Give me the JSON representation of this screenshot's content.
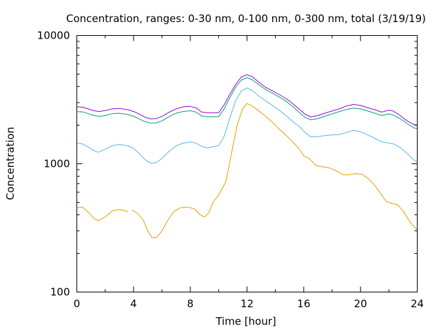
{
  "chart_data": {
    "type": "line",
    "title": "Concentration, ranges: 0-30 nm, 0-100 nm, 0-300 nm, total (3/19/19)",
    "xlabel": "Time [hour]",
    "ylabel": "Concentration",
    "xlim": [
      0,
      24
    ],
    "ylim": [
      100,
      10000
    ],
    "yscale": "log",
    "grid": false,
    "legend": "none",
    "x_ticks": [
      0,
      4,
      8,
      12,
      16,
      20,
      24
    ],
    "x_tick_labels": [
      "0",
      "4",
      "8",
      "12",
      "16",
      "20",
      "24"
    ],
    "y_ticks": [
      100,
      1000,
      10000
    ],
    "y_tick_labels": [
      "100",
      "1000",
      "10000"
    ],
    "series": [
      {
        "color": "#e69f00",
        "points": [
          [
            0,
            455
          ],
          [
            0.4,
            460
          ],
          [
            0.8,
            420
          ],
          [
            1.2,
            375
          ],
          [
            1.5,
            360
          ],
          [
            2,
            385
          ],
          [
            2.5,
            430
          ],
          [
            3,
            440
          ],
          [
            3.6,
            425
          ],
          [
            3.6,
            null
          ],
          [
            3.9,
            null
          ],
          [
            3.9,
            435
          ],
          [
            4.3,
            410
          ],
          [
            4.7,
            360
          ],
          [
            5,
            300
          ],
          [
            5.3,
            265
          ],
          [
            5.6,
            265
          ],
          [
            6,
            300
          ],
          [
            6.4,
            360
          ],
          [
            6.8,
            420
          ],
          [
            7.3,
            455
          ],
          [
            7.8,
            460
          ],
          [
            8.3,
            445
          ],
          [
            8.7,
            400
          ],
          [
            9,
            385
          ],
          [
            9.3,
            415
          ],
          [
            9.6,
            500
          ],
          [
            10,
            570
          ],
          [
            10.5,
            720
          ],
          [
            10.9,
            1200
          ],
          [
            11.3,
            2000
          ],
          [
            11.7,
            2700
          ],
          [
            12,
            2950
          ],
          [
            12.3,
            2850
          ],
          [
            12.8,
            2600
          ],
          [
            13.3,
            2350
          ],
          [
            13.8,
            2100
          ],
          [
            14.3,
            1850
          ],
          [
            14.8,
            1650
          ],
          [
            15.3,
            1450
          ],
          [
            15.7,
            1300
          ],
          [
            16,
            1150
          ],
          [
            16.4,
            1100
          ],
          [
            16.8,
            980
          ],
          [
            17.2,
            950
          ],
          [
            17.8,
            930
          ],
          [
            18.3,
            880
          ],
          [
            18.8,
            820
          ],
          [
            19.2,
            820
          ],
          [
            19.7,
            840
          ],
          [
            20.1,
            830
          ],
          [
            20.6,
            760
          ],
          [
            21,
            680
          ],
          [
            21.4,
            590
          ],
          [
            21.8,
            510
          ],
          [
            22.2,
            490
          ],
          [
            22.6,
            480
          ],
          [
            23,
            430
          ],
          [
            23.5,
            350
          ],
          [
            24,
            305
          ]
        ]
      },
      {
        "color": "#56b4e9",
        "points": [
          [
            0,
            1450
          ],
          [
            0.4,
            1430
          ],
          [
            0.8,
            1350
          ],
          [
            1.2,
            1270
          ],
          [
            1.5,
            1230
          ],
          [
            2,
            1300
          ],
          [
            2.5,
            1380
          ],
          [
            3,
            1420
          ],
          [
            3.6,
            1380
          ],
          [
            4,
            1320
          ],
          [
            4.4,
            1200
          ],
          [
            4.8,
            1080
          ],
          [
            5.2,
            1010
          ],
          [
            5.6,
            1020
          ],
          [
            6,
            1100
          ],
          [
            6.5,
            1250
          ],
          [
            7,
            1380
          ],
          [
            7.5,
            1450
          ],
          [
            8,
            1480
          ],
          [
            8.4,
            1450
          ],
          [
            8.8,
            1370
          ],
          [
            9.2,
            1330
          ],
          [
            9.6,
            1360
          ],
          [
            10,
            1380
          ],
          [
            10.4,
            1650
          ],
          [
            10.8,
            2300
          ],
          [
            11.2,
            3100
          ],
          [
            11.6,
            3700
          ],
          [
            12,
            3900
          ],
          [
            12.4,
            3700
          ],
          [
            12.8,
            3400
          ],
          [
            13.3,
            3100
          ],
          [
            13.8,
            2850
          ],
          [
            14.3,
            2600
          ],
          [
            14.8,
            2350
          ],
          [
            15.3,
            2100
          ],
          [
            15.7,
            1950
          ],
          [
            16.1,
            1750
          ],
          [
            16.5,
            1620
          ],
          [
            17,
            1630
          ],
          [
            17.5,
            1660
          ],
          [
            18,
            1680
          ],
          [
            18.5,
            1690
          ],
          [
            19,
            1750
          ],
          [
            19.5,
            1820
          ],
          [
            20,
            1780
          ],
          [
            20.5,
            1680
          ],
          [
            21,
            1580
          ],
          [
            21.5,
            1480
          ],
          [
            22,
            1450
          ],
          [
            22.4,
            1420
          ],
          [
            22.8,
            1340
          ],
          [
            23.3,
            1200
          ],
          [
            23.8,
            1060
          ],
          [
            24,
            1040
          ]
        ]
      },
      {
        "color": "#009e73",
        "points": [
          [
            0,
            2550
          ],
          [
            0.4,
            2540
          ],
          [
            0.8,
            2460
          ],
          [
            1.2,
            2380
          ],
          [
            1.6,
            2340
          ],
          [
            2,
            2380
          ],
          [
            2.5,
            2460
          ],
          [
            3,
            2480
          ],
          [
            3.6,
            2420
          ],
          [
            4,
            2350
          ],
          [
            4.4,
            2240
          ],
          [
            4.8,
            2130
          ],
          [
            5.2,
            2080
          ],
          [
            5.6,
            2090
          ],
          [
            6,
            2160
          ],
          [
            6.5,
            2330
          ],
          [
            7,
            2480
          ],
          [
            7.5,
            2560
          ],
          [
            8,
            2590
          ],
          [
            8.4,
            2530
          ],
          [
            8.8,
            2360
          ],
          [
            9.2,
            2330
          ],
          [
            9.6,
            2330
          ],
          [
            10,
            2330
          ],
          [
            10.4,
            2700
          ],
          [
            10.8,
            3300
          ],
          [
            11.2,
            3950
          ],
          [
            11.6,
            4500
          ],
          [
            12,
            4700
          ],
          [
            12.4,
            4500
          ],
          [
            12.8,
            4150
          ],
          [
            13.3,
            3800
          ],
          [
            13.8,
            3550
          ],
          [
            14.3,
            3300
          ],
          [
            14.8,
            3050
          ],
          [
            15.3,
            2750
          ],
          [
            15.7,
            2500
          ],
          [
            16.1,
            2300
          ],
          [
            16.5,
            2200
          ],
          [
            17,
            2250
          ],
          [
            17.5,
            2350
          ],
          [
            18,
            2450
          ],
          [
            18.5,
            2550
          ],
          [
            19,
            2650
          ],
          [
            19.5,
            2720
          ],
          [
            20,
            2680
          ],
          [
            20.5,
            2580
          ],
          [
            21,
            2480
          ],
          [
            21.5,
            2380
          ],
          [
            22,
            2450
          ],
          [
            22.3,
            2400
          ],
          [
            22.8,
            2250
          ],
          [
            23.3,
            2050
          ],
          [
            23.8,
            1900
          ],
          [
            24,
            1880
          ]
        ]
      },
      {
        "color": "#9400d3",
        "points": [
          [
            0,
            2780
          ],
          [
            0.4,
            2760
          ],
          [
            0.8,
            2680
          ],
          [
            1.2,
            2590
          ],
          [
            1.6,
            2560
          ],
          [
            2,
            2600
          ],
          [
            2.5,
            2680
          ],
          [
            3,
            2700
          ],
          [
            3.6,
            2640
          ],
          [
            4,
            2560
          ],
          [
            4.4,
            2440
          ],
          [
            4.8,
            2310
          ],
          [
            5.2,
            2240
          ],
          [
            5.6,
            2250
          ],
          [
            6,
            2340
          ],
          [
            6.5,
            2520
          ],
          [
            7,
            2680
          ],
          [
            7.5,
            2780
          ],
          [
            8,
            2800
          ],
          [
            8.4,
            2730
          ],
          [
            8.8,
            2530
          ],
          [
            9.2,
            2500
          ],
          [
            9.6,
            2490
          ],
          [
            10,
            2500
          ],
          [
            10.4,
            2900
          ],
          [
            10.8,
            3500
          ],
          [
            11.2,
            4150
          ],
          [
            11.6,
            4750
          ],
          [
            12,
            4950
          ],
          [
            12.4,
            4750
          ],
          [
            12.8,
            4350
          ],
          [
            13.3,
            3950
          ],
          [
            13.8,
            3700
          ],
          [
            14.3,
            3450
          ],
          [
            14.8,
            3200
          ],
          [
            15.3,
            2900
          ],
          [
            15.7,
            2650
          ],
          [
            16.1,
            2430
          ],
          [
            16.5,
            2320
          ],
          [
            17,
            2380
          ],
          [
            17.5,
            2480
          ],
          [
            18,
            2580
          ],
          [
            18.5,
            2680
          ],
          [
            19,
            2820
          ],
          [
            19.5,
            2900
          ],
          [
            20,
            2850
          ],
          [
            20.5,
            2740
          ],
          [
            21,
            2640
          ],
          [
            21.5,
            2530
          ],
          [
            22,
            2620
          ],
          [
            22.3,
            2580
          ],
          [
            22.8,
            2380
          ],
          [
            23.3,
            2150
          ],
          [
            23.8,
            2020
          ],
          [
            24,
            2000
          ]
        ]
      }
    ]
  }
}
